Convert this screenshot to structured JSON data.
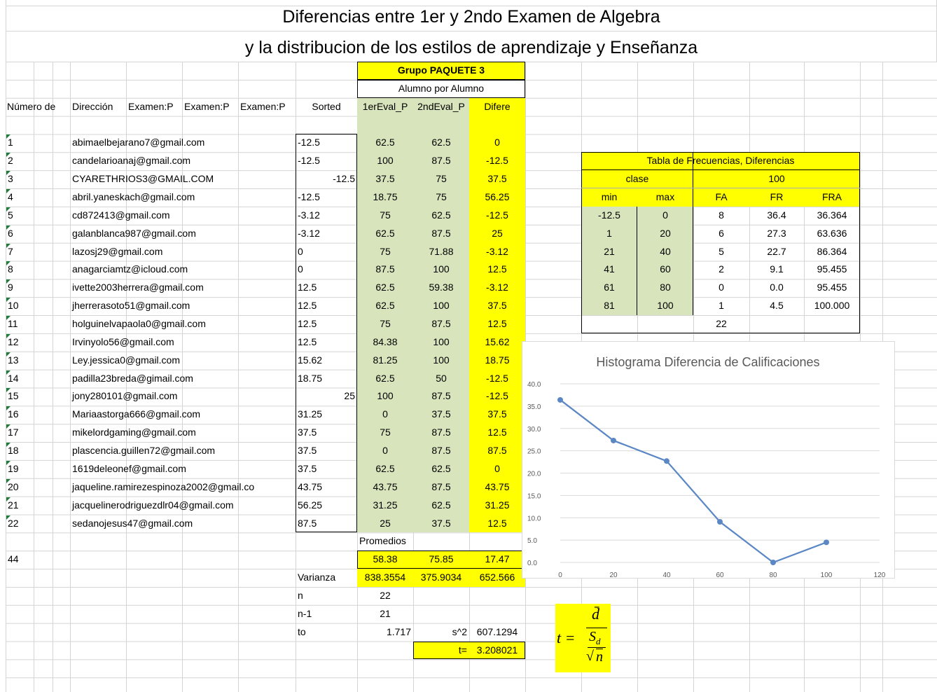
{
  "title_line1": "Diferencias entre 1er y 2ndo Examen de Algebra",
  "title_line2": "y la distribucion de los estilos de aprendizaje y Enseñanza",
  "group_label": "Grupo PAQUETE 3",
  "subgroup_label": "Alumno por Alumno",
  "headers": [
    "Número de",
    "Dirección",
    "Examen:P",
    "Examen:P",
    "Examen:P",
    "Sorted",
    "1erEval_P",
    "2ndEval_P",
    "Difere"
  ],
  "students": [
    [
      "1",
      "abimaelbejarano7@gmail.com",
      "-12.5",
      "62.5",
      "62.5",
      "0"
    ],
    [
      "2",
      "candelarioanaj@gmail.com",
      "-12.5",
      "100",
      "87.5",
      "-12.5"
    ],
    [
      "3",
      "CYARETHRIOS3@GMAIL.COM",
      "-12.5",
      "37.5",
      "75",
      "37.5"
    ],
    [
      "4",
      "abril.yaneskach@gmail.com",
      "-12.5",
      "18.75",
      "75",
      "56.25"
    ],
    [
      "5",
      "cd872413@gmail.com",
      "-3.12",
      "75",
      "62.5",
      "-12.5"
    ],
    [
      "6",
      "galanblanca987@gmail.com",
      "-3.12",
      "62.5",
      "87.5",
      "25"
    ],
    [
      "7",
      "lazosj29@gmail.com",
      "0",
      "75",
      "71.88",
      "-3.12"
    ],
    [
      "8",
      "anagarciamtz@icloud.com",
      "0",
      "87.5",
      "100",
      "12.5"
    ],
    [
      "9",
      "ivette2003herrera@gmail.com",
      "12.5",
      "62.5",
      "59.38",
      "-3.12"
    ],
    [
      "10",
      "jherrerasoto51@gmail.com",
      "12.5",
      "62.5",
      "100",
      "37.5"
    ],
    [
      "11",
      "holguinelvapaola0@gmail.com",
      "12.5",
      "75",
      "87.5",
      "12.5"
    ],
    [
      "12",
      "Irvinyolo56@gmail.com",
      "12.5",
      "84.38",
      "100",
      "15.62"
    ],
    [
      "13",
      "Ley.jessica0@gmail.com",
      "15.62",
      "81.25",
      "100",
      "18.75"
    ],
    [
      "14",
      "padilla23breda@gimail.com",
      "18.75",
      "62.5",
      "50",
      "-12.5"
    ],
    [
      "15",
      "jony280101@gmail.com",
      "25",
      "100",
      "87.5",
      "-12.5"
    ],
    [
      "16",
      "Mariaastorga666@gmail.com",
      "31.25",
      "0",
      "37.5",
      "37.5"
    ],
    [
      "17",
      "mikelordgaming@gmail.com",
      "37.5",
      "75",
      "87.5",
      "12.5"
    ],
    [
      "18",
      "plascencia.guillen72@gmail.com",
      "37.5",
      "0",
      "87.5",
      "87.5"
    ],
    [
      "19",
      "1619deleonef@gmail.com",
      "37.5",
      "62.5",
      "62.5",
      "0"
    ],
    [
      "20",
      "jaqueline.ramirezespinoza2002@gmail.co",
      "43.75",
      "43.75",
      "87.5",
      "43.75"
    ],
    [
      "21",
      "jacquelinerodriguezdlr04@gmail.com",
      "56.25",
      "31.25",
      "62.5",
      "31.25"
    ],
    [
      "22",
      "sedanojesus47@gmail.com",
      "87.5",
      "25",
      "37.5",
      "12.5"
    ]
  ],
  "summary": {
    "promedios_label": "Promedios",
    "count": "44",
    "averages": [
      "58.38",
      "75.85",
      "17.47"
    ],
    "varianza_label": "Varianza",
    "variances": [
      "838.3554",
      "375.9034",
      "652.566"
    ],
    "n_label": "n",
    "n": "22",
    "n1_label": "n-1",
    "n1": "21",
    "to_label": "to",
    "to": "1.717",
    "s2_label": "s^2",
    "s2": "607.1294",
    "t_label": "t=",
    "t": "3.208021"
  },
  "freq_table": {
    "title": "Tabla de Frecuencias, Diferencias",
    "clase": "clase",
    "hundred": "100",
    "headers": [
      "min",
      "max",
      "FA",
      "FR",
      "FRA"
    ],
    "rows": [
      [
        "-12.5",
        "0",
        "8",
        "36.4",
        "36.364"
      ],
      [
        "1",
        "20",
        "6",
        "27.3",
        "63.636"
      ],
      [
        "21",
        "40",
        "5",
        "22.7",
        "86.364"
      ],
      [
        "41",
        "60",
        "2",
        "9.1",
        "95.455"
      ],
      [
        "61",
        "80",
        "0",
        "0.0",
        "95.455"
      ],
      [
        "81",
        "100",
        "1",
        "4.5",
        "100.000"
      ]
    ],
    "total": "22"
  },
  "formula": {
    "lhs": "t =",
    "numerator": "d̄",
    "den_symbol": "S",
    "den_subscript": "d",
    "den_root": "n"
  },
  "chart_data": {
    "type": "line",
    "title": "Histograma Diferencia de Calificaciones",
    "x": [
      0,
      20,
      40,
      60,
      80,
      100
    ],
    "series": [
      {
        "color": "#5b87c5",
        "values": [
          36.4,
          27.3,
          22.7,
          9.1,
          0,
          4.5
        ]
      }
    ],
    "xlim": [
      0,
      120
    ],
    "xticks": [
      0,
      20,
      40,
      60,
      80,
      100,
      120
    ],
    "ylim": [
      0,
      40
    ],
    "yticks": [
      {
        "value": 0,
        "label": "0.0"
      },
      {
        "value": 5,
        "label": "5.0"
      },
      {
        "value": 10,
        "label": "10.0"
      },
      {
        "value": 15,
        "label": "15.0"
      },
      {
        "value": 20,
        "label": "20.0"
      },
      {
        "value": 25,
        "label": "25.0"
      },
      {
        "value": 30,
        "label": "30.0"
      },
      {
        "value": 35,
        "label": "35.0"
      },
      {
        "value": 40,
        "label": "40.0"
      }
    ],
    "grid": true
  }
}
